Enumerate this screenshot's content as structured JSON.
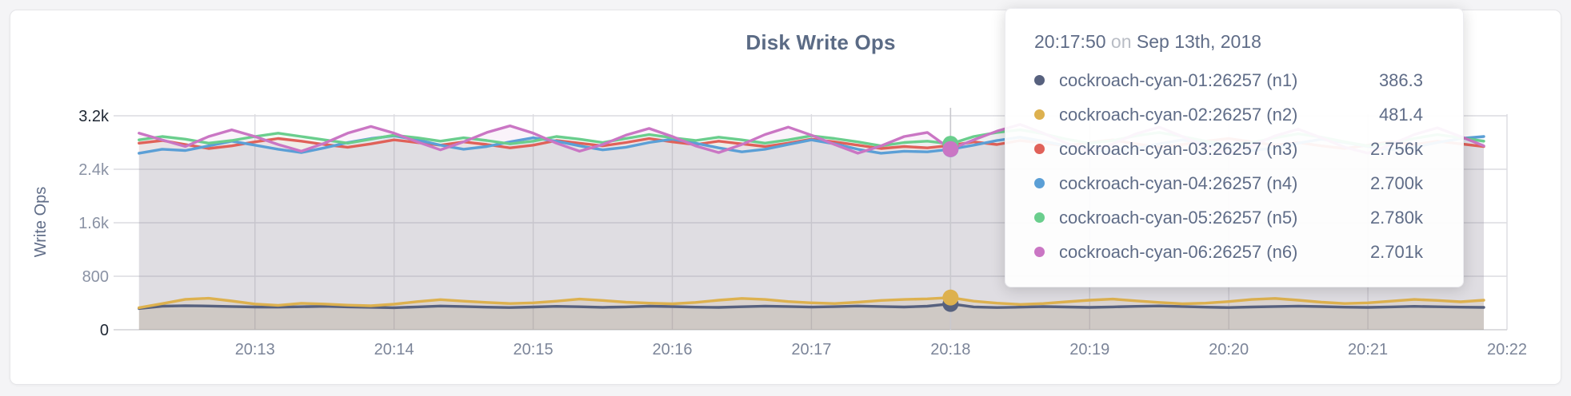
{
  "page": {
    "background": "#f4f4f6"
  },
  "style": {
    "grid_color": "#dcdce1",
    "baseline_color": "#d2d2d6",
    "guideline_color": "#c9c9ce",
    "ytick_color": "#8a92a4",
    "ytick_strong_color": "#1f2733",
    "xtick_color": "#7c8599",
    "title_color": "#5b6b85",
    "text_color": "#5f6c87"
  },
  "chart_data": {
    "type": "line",
    "title": "Disk Write Ops",
    "xlabel": "",
    "ylabel": "Write Ops",
    "ylim": [
      0,
      3200
    ],
    "grid": true,
    "legend_position": "tooltip-only",
    "x_time_base": "20:00:00",
    "x_start_seconds": 730,
    "x_step_seconds": 10,
    "y_ticks": [
      {
        "label": "0",
        "value": 0,
        "emphasis": true
      },
      {
        "label": "800",
        "value": 800,
        "emphasis": false
      },
      {
        "label": "1.6k",
        "value": 1600,
        "emphasis": false
      },
      {
        "label": "2.4k",
        "value": 2400,
        "emphasis": false
      },
      {
        "label": "3.2k",
        "value": 3200,
        "emphasis": true
      }
    ],
    "x_ticks": [
      {
        "label": "20:13",
        "seconds": 780
      },
      {
        "label": "20:14",
        "seconds": 840
      },
      {
        "label": "20:15",
        "seconds": 900
      },
      {
        "label": "20:16",
        "seconds": 960
      },
      {
        "label": "20:17",
        "seconds": 1020
      },
      {
        "label": "20:18",
        "seconds": 1080
      },
      {
        "label": "20:19",
        "seconds": 1140
      },
      {
        "label": "20:20",
        "seconds": 1200
      },
      {
        "label": "20:21",
        "seconds": 1260
      },
      {
        "label": "20:22",
        "seconds": 1320
      }
    ],
    "hover": {
      "index": 35,
      "time_label": "20:17:50"
    },
    "series": [
      {
        "name": "cockroach-cyan-01:26257 (n1)",
        "color": "#57617e",
        "fill_opacity": 0.13,
        "values": [
          318,
          352,
          360,
          355,
          348,
          340,
          338,
          344,
          350,
          342,
          336,
          330,
          342,
          355,
          348,
          338,
          332,
          340,
          350,
          344,
          336,
          342,
          352,
          346,
          338,
          334,
          344,
          354,
          347,
          339,
          345,
          355,
          348,
          340,
          352,
          386.3,
          342,
          332,
          338,
          346,
          340,
          334,
          342,
          350,
          356,
          348,
          338,
          332,
          340,
          348,
          354,
          346,
          338,
          334,
          342,
          350,
          344,
          338,
          334
        ]
      },
      {
        "name": "cockroach-cyan-02:26257 (n2)",
        "color": "#ddb14f",
        "fill_opacity": 0.15,
        "values": [
          330,
          390,
          455,
          470,
          430,
          385,
          365,
          395,
          385,
          368,
          358,
          382,
          420,
          450,
          428,
          408,
          392,
          402,
          428,
          458,
          438,
          412,
          398,
          388,
          408,
          442,
          468,
          452,
          422,
          402,
          392,
          412,
          438,
          452,
          462,
          481.4,
          428,
          398,
          378,
          392,
          418,
          442,
          458,
          432,
          408,
          388,
          398,
          422,
          452,
          468,
          442,
          412,
          392,
          402,
          428,
          452,
          438,
          418,
          442
        ]
      },
      {
        "name": "cockroach-cyan-03:26257 (n3)",
        "color": "#e06159",
        "fill_opacity": 0.085,
        "values": [
          2790,
          2830,
          2770,
          2710,
          2750,
          2810,
          2860,
          2820,
          2770,
          2730,
          2780,
          2840,
          2800,
          2760,
          2810,
          2770,
          2720,
          2760,
          2830,
          2790,
          2750,
          2800,
          2860,
          2810,
          2770,
          2820,
          2780,
          2740,
          2790,
          2850,
          2810,
          2760,
          2710,
          2740,
          2720,
          2756,
          2810,
          2770,
          2830,
          2790,
          2750,
          2800,
          2840,
          2780,
          2730,
          2770,
          2820,
          2860,
          2810,
          2760,
          2800,
          2750,
          2710,
          2760,
          2810,
          2770,
          2820,
          2780,
          2740
        ]
      },
      {
        "name": "cockroach-cyan-04:26257 (n4)",
        "color": "#5b9fd6",
        "fill_opacity": 0.085,
        "values": [
          2640,
          2700,
          2680,
          2750,
          2820,
          2760,
          2700,
          2650,
          2720,
          2800,
          2860,
          2900,
          2840,
          2760,
          2700,
          2740,
          2810,
          2870,
          2820,
          2750,
          2690,
          2730,
          2800,
          2850,
          2790,
          2720,
          2660,
          2700,
          2770,
          2840,
          2780,
          2700,
          2640,
          2670,
          2660,
          2700,
          2760,
          2830,
          2880,
          2820,
          2750,
          2700,
          2650,
          2710,
          2780,
          2840,
          2790,
          2730,
          2680,
          2720,
          2790,
          2850,
          2800,
          2740,
          2690,
          2730,
          2800,
          2860,
          2890
        ]
      },
      {
        "name": "cockroach-cyan-05:26257 (n5)",
        "color": "#6ace8d",
        "fill_opacity": 0.085,
        "values": [
          2840,
          2890,
          2850,
          2790,
          2830,
          2890,
          2940,
          2890,
          2840,
          2790,
          2850,
          2910,
          2870,
          2820,
          2870,
          2830,
          2780,
          2820,
          2890,
          2850,
          2800,
          2860,
          2920,
          2870,
          2830,
          2880,
          2840,
          2790,
          2840,
          2900,
          2860,
          2810,
          2750,
          2800,
          2820,
          2780,
          2890,
          2950,
          2990,
          2930,
          2850,
          2790,
          2830,
          2900,
          2950,
          2890,
          2820,
          2760,
          2800,
          2870,
          2930,
          2880,
          2810,
          2750,
          2790,
          2860,
          2920,
          2870,
          2820
        ]
      },
      {
        "name": "cockroach-cyan-06:26257 (n6)",
        "color": "#ca76c4",
        "fill_opacity": 0.085,
        "values": [
          2940,
          2840,
          2740,
          2890,
          2990,
          2890,
          2770,
          2670,
          2790,
          2940,
          3040,
          2940,
          2810,
          2690,
          2810,
          2950,
          3050,
          2940,
          2790,
          2670,
          2770,
          2910,
          3010,
          2890,
          2750,
          2650,
          2770,
          2920,
          3030,
          2910,
          2770,
          2640,
          2750,
          2890,
          2950,
          2701,
          2840,
          2970,
          3070,
          2940,
          2790,
          2670,
          2780,
          2930,
          3030,
          2890,
          2740,
          2630,
          2750,
          2900,
          3000,
          2870,
          2730,
          2640,
          2770,
          2920,
          3020,
          2890,
          2750
        ]
      }
    ]
  },
  "tooltip": {
    "time": "20:17:50",
    "conjunction": "on",
    "date": "Sep 13th, 2018",
    "rows": [
      {
        "series": "cockroach-cyan-01:26257 (n1)",
        "value_label": "386.3",
        "color": "#57617e"
      },
      {
        "series": "cockroach-cyan-02:26257 (n2)",
        "value_label": "481.4",
        "color": "#ddb14f"
      },
      {
        "series": "cockroach-cyan-03:26257 (n3)",
        "value_label": "2.756k",
        "color": "#e06159"
      },
      {
        "series": "cockroach-cyan-04:26257 (n4)",
        "value_label": "2.700k",
        "color": "#5b9fd6"
      },
      {
        "series": "cockroach-cyan-05:26257 (n5)",
        "value_label": "2.780k",
        "color": "#6ace8d"
      },
      {
        "series": "cockroach-cyan-06:26257 (n6)",
        "value_label": "2.701k",
        "color": "#ca76c4"
      }
    ]
  }
}
